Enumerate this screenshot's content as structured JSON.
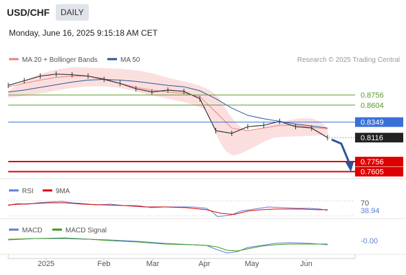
{
  "header": {
    "pair": "USD/CHF",
    "timeframe": "DAILY",
    "datetime": "Monday, June 16, 2025 9:15:18 AM CET"
  },
  "price_panel": {
    "legend": [
      {
        "label": "MA 20 + Bollinger Bands",
        "color": "#f08080"
      },
      {
        "label": "MA 50",
        "color": "#2c5596"
      }
    ],
    "credit": "Research © 2025 Trading Central"
  },
  "rsi_panel": {
    "legend": [
      {
        "label": "RSI",
        "color": "#5b7fd6"
      },
      {
        "label": "9MA",
        "color": "#dd0000"
      }
    ],
    "level_label": "70",
    "value_label": "38.94"
  },
  "macd_panel": {
    "legend": [
      {
        "label": "MACD",
        "color": "#5b7fd6"
      },
      {
        "label": "MACD Signal",
        "color": "#3a9a1a"
      }
    ],
    "value_label": "-0.00"
  },
  "chart_data": {
    "type": "line",
    "title": "USD/CHF",
    "price_range": [
      0.755,
      0.915
    ],
    "x_ticks": [
      "2025",
      "Feb",
      "Mar",
      "Apr",
      "May",
      "Jun"
    ],
    "levels": [
      {
        "label": "0.8756",
        "value": 0.8756,
        "kind": "resistance",
        "color": "#5a9a2a"
      },
      {
        "label": "0.8604",
        "value": 0.8604,
        "kind": "resistance",
        "color": "#5a9a2a"
      },
      {
        "label": "0.8349",
        "value": 0.8349,
        "kind": "pivot",
        "color": "#3a6fd8"
      },
      {
        "label": "0.8116",
        "value": 0.8116,
        "kind": "last",
        "color": "#222222"
      },
      {
        "label": "0.7756",
        "value": 0.7756,
        "kind": "support",
        "color": "#dd0000"
      },
      {
        "label": "0.7605",
        "value": 0.7605,
        "kind": "support",
        "color": "#dd0000"
      }
    ],
    "series": [
      {
        "name": "MA 20 + Bollinger Bands",
        "values": [
          0.888,
          0.893,
          0.898,
          0.902,
          0.904,
          0.904,
          0.9,
          0.893,
          0.887,
          0.883,
          0.88,
          0.878,
          0.873,
          0.85,
          0.826,
          0.822,
          0.826,
          0.83,
          0.83,
          0.827,
          0.825
        ]
      },
      {
        "name": "MA 50",
        "values": [
          0.88,
          0.883,
          0.887,
          0.891,
          0.895,
          0.898,
          0.899,
          0.898,
          0.896,
          0.893,
          0.89,
          0.888,
          0.882,
          0.87,
          0.856,
          0.845,
          0.84,
          0.836,
          0.832,
          0.829,
          0.826
        ]
      }
    ],
    "price_close": [
      0.89,
      0.897,
      0.904,
      0.907,
      0.906,
      0.904,
      0.899,
      0.893,
      0.885,
      0.88,
      0.883,
      0.881,
      0.87,
      0.822,
      0.818,
      0.828,
      0.83,
      0.836,
      0.828,
      0.826,
      0.8116
    ],
    "rsi": {
      "overbought": 70,
      "last": 38.94
    },
    "macd": {
      "last": -0.0
    }
  }
}
